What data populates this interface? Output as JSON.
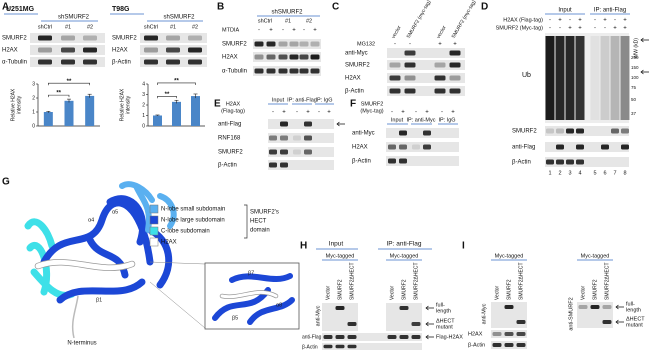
{
  "A": {
    "letter": "A",
    "u251mg": {
      "title": "U251MG",
      "group": "shSMURF2",
      "lanes": [
        "shCtrl",
        "#1",
        "#2"
      ],
      "rows": [
        "SMURF2",
        "H2AX",
        "α-Tubulin"
      ],
      "chart": {
        "type": "bar",
        "y_label": [
          "Relative H2AX",
          "intensity"
        ],
        "values": [
          1,
          1.8,
          2.15
        ],
        "errors": [
          0.05,
          0.12,
          0.12
        ],
        "ylim": [
          0,
          3
        ],
        "yticks": [
          0,
          1,
          2,
          3
        ],
        "color": "#4a86c8",
        "stars": [
          "**",
          "**"
        ]
      }
    },
    "t98g": {
      "title": "T98G",
      "group": "shSMURF2",
      "lanes": [
        "shCtrl",
        "#1",
        "#2"
      ],
      "rows": [
        "SMURF2",
        "H2AX",
        "β-Actin"
      ],
      "chart": {
        "type": "bar",
        "y_label": [
          "Relative H2AX",
          "intensity"
        ],
        "values": [
          1,
          2.3,
          2.85
        ],
        "errors": [
          0.05,
          0.15,
          0.2
        ],
        "ylim": [
          0,
          4
        ],
        "yticks": [
          0,
          1,
          2,
          3,
          4
        ],
        "color": "#4a86c8",
        "stars": [
          "**",
          "**"
        ]
      }
    }
  },
  "B": {
    "letter": "B",
    "group": "shSMURF2",
    "lanes": [
      "shCtrl",
      "#1",
      "#2"
    ],
    "treatment": "MTDIA",
    "signs": [
      "-",
      "+",
      "-",
      "+",
      "-",
      "+"
    ],
    "rows": [
      "SMURF2",
      "H2AX",
      "α-Tubulin"
    ]
  },
  "C": {
    "letter": "C",
    "lanes": [
      "vector",
      "SMURF2 (myc-tag)",
      "vector",
      "SMURF2 (myc-tag)"
    ],
    "treatment": "MG132",
    "signs": [
      "-",
      "-",
      "+",
      "+"
    ],
    "rows": [
      "anti-Myc",
      "SMURF2",
      "H2AX",
      "β-Actin"
    ]
  },
  "D": {
    "letter": "D",
    "groups": [
      "Input",
      "IP: anti-Flag"
    ],
    "conditions": [
      {
        "name": "H2AX (Flag-tag)",
        "signs": [
          "-",
          "+",
          "-",
          "+",
          "-",
          "+",
          "-",
          "+"
        ]
      },
      {
        "name": "SMURF2 (Myc-tag)",
        "signs": [
          "-",
          "-",
          "+",
          "+",
          "-",
          "-",
          "+",
          "+"
        ]
      }
    ],
    "mw_label": "MW (kD)",
    "mw": [
      "250",
      "150",
      "100",
      "75",
      "50",
      "37"
    ],
    "rows": [
      "Ub",
      "SMURF2",
      "anti-Flag",
      "β-Actin"
    ],
    "lane_numbers": [
      "1",
      "2",
      "3",
      "4",
      "5",
      "6",
      "7",
      "8"
    ]
  },
  "E": {
    "letter": "E",
    "condition": [
      "H2AX",
      "(Flag-tag)"
    ],
    "groups": [
      "Input",
      "IP: anti-Flag",
      "IP: IgG"
    ],
    "signs": [
      "-",
      "+",
      "-",
      "+",
      "-",
      "+"
    ],
    "rows": [
      "anti-Flag",
      "RNF168",
      "SMURF2",
      "β-Actin"
    ]
  },
  "F": {
    "letter": "F",
    "condition": [
      "SMURF2",
      "(Myc-tag)"
    ],
    "groups": [
      "Input",
      "IP: anti-Myc",
      "IP: IgG"
    ],
    "signs": [
      "-",
      "+",
      "-",
      "+",
      "-",
      "+"
    ],
    "rows": [
      "anti-Myc",
      "H2AX",
      "β-Actin"
    ]
  },
  "G": {
    "letter": "G",
    "legend": [
      {
        "label": "N-lobe small subdomain",
        "color": "#5ab0f0"
      },
      {
        "label": "N-lobe large subdomain",
        "color": "#1c47d6"
      },
      {
        "label": "C-lobe subdomain",
        "color": "#3ee0e8"
      },
      {
        "label": "H2AX",
        "color": "#ffffff"
      }
    ],
    "domain_label": [
      "SMURF2's",
      "HECT",
      "domain"
    ],
    "terminus": "N-terminus",
    "structure_labels": [
      "α4",
      "α5",
      "β1"
    ],
    "inset_labels": [
      "β7",
      "α8",
      "β5"
    ]
  },
  "H": {
    "letter": "H",
    "groups": [
      "Input",
      "IP: anti-Flag"
    ],
    "tags": [
      "Myc-tagged",
      "Myc-tagged"
    ],
    "lanes": [
      "Vector",
      "SMURF2",
      "SMURF2ΔHECT",
      "Vector",
      "SMURF2",
      "SMURF2ΔHECT"
    ],
    "rows": [
      "anti-Myc",
      "anti-Flag",
      "β-Actin"
    ],
    "annotations": {
      "full_length": [
        "full-",
        "length"
      ],
      "mutant": [
        "ΔHECT",
        "mutant"
      ],
      "flag": "Flag-H2AX"
    }
  },
  "I": {
    "letter": "I",
    "tags": [
      "Myc-tagged",
      "Myc-tagged"
    ],
    "lanes": [
      "Vector",
      "SMURF2",
      "SMURF2ΔHECT",
      "Vector",
      "SMURF2",
      "SMURF2ΔHECT"
    ],
    "rows_left": [
      "anti-Myc",
      "H2AX",
      "β-Actin"
    ],
    "rows_right": [
      "anti-SMURF2"
    ],
    "annotations": {
      "full_length": [
        "full-",
        "length"
      ],
      "mutant": [
        "ΔHECT",
        "mutant"
      ]
    }
  }
}
